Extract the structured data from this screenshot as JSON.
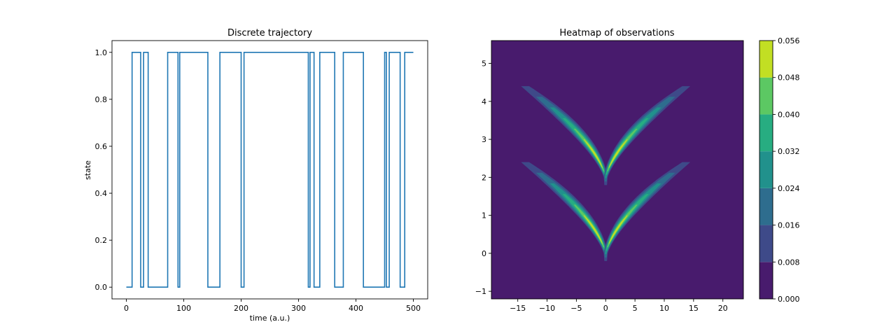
{
  "chart_data": [
    {
      "type": "line",
      "title": "Discrete trajectory",
      "xlabel": "time (a.u.)",
      "ylabel": "state",
      "xlim": [
        -25,
        525
      ],
      "ylim": [
        -0.05,
        1.05
      ],
      "xticks": [
        0,
        100,
        200,
        300,
        400,
        500
      ],
      "yticks": [
        0.0,
        0.2,
        0.4,
        0.6,
        0.8,
        1.0
      ],
      "xtick_labels": [
        "0",
        "100",
        "200",
        "300",
        "400",
        "500"
      ],
      "ytick_labels": [
        "0.0",
        "0.2",
        "0.4",
        "0.6",
        "0.8",
        "1.0"
      ],
      "grid": false,
      "line_color": "#1f77b4",
      "steps": [
        [
          0,
          0
        ],
        [
          10,
          1
        ],
        [
          25,
          0
        ],
        [
          30,
          1
        ],
        [
          38,
          0
        ],
        [
          72,
          1
        ],
        [
          90,
          0
        ],
        [
          93,
          1
        ],
        [
          142,
          0
        ],
        [
          163,
          1
        ],
        [
          200,
          0
        ],
        [
          205,
          1
        ],
        [
          317,
          0
        ],
        [
          320,
          1
        ],
        [
          327,
          0
        ],
        [
          337,
          1
        ],
        [
          363,
          0
        ],
        [
          378,
          1
        ],
        [
          413,
          0
        ],
        [
          450,
          1
        ],
        [
          453,
          0
        ],
        [
          458,
          1
        ],
        [
          477,
          0
        ],
        [
          485,
          1
        ],
        [
          500,
          1
        ]
      ]
    },
    {
      "type": "heatmap",
      "title": "Heatmap of observations",
      "xlabel": "",
      "ylabel": "",
      "xlim": [
        -19.5,
        23.5
      ],
      "ylim": [
        -1.2,
        5.6
      ],
      "xticks": [
        -15,
        -10,
        -5,
        0,
        5,
        10,
        15,
        20
      ],
      "yticks": [
        -1,
        0,
        1,
        2,
        3,
        4,
        5
      ],
      "xtick_labels": [
        "−15",
        "−10",
        "−5",
        "0",
        "5",
        "10",
        "15",
        "20"
      ],
      "ytick_labels": [
        "−1",
        "0",
        "1",
        "2",
        "3",
        "4",
        "5"
      ],
      "background_color": "#481b6d",
      "levels": [
        0.0,
        0.008,
        0.016,
        0.024,
        0.032,
        0.04,
        0.048,
        0.056
      ],
      "level_colors": [
        "#481b6d",
        "#3e4a89",
        "#2e6d8e",
        "#21918c",
        "#27ad81",
        "#5cc863",
        "#c2df23"
      ],
      "colorbar_labels": [
        "0.000",
        "0.008",
        "0.016",
        "0.024",
        "0.032",
        "0.040",
        "0.048",
        "0.056"
      ],
      "density_branches": [
        {
          "y0": 0.0,
          "a": 0.02,
          "b": 0.16
        },
        {
          "y0": 2.0,
          "a": 0.02,
          "b": 0.16
        }
      ]
    }
  ]
}
